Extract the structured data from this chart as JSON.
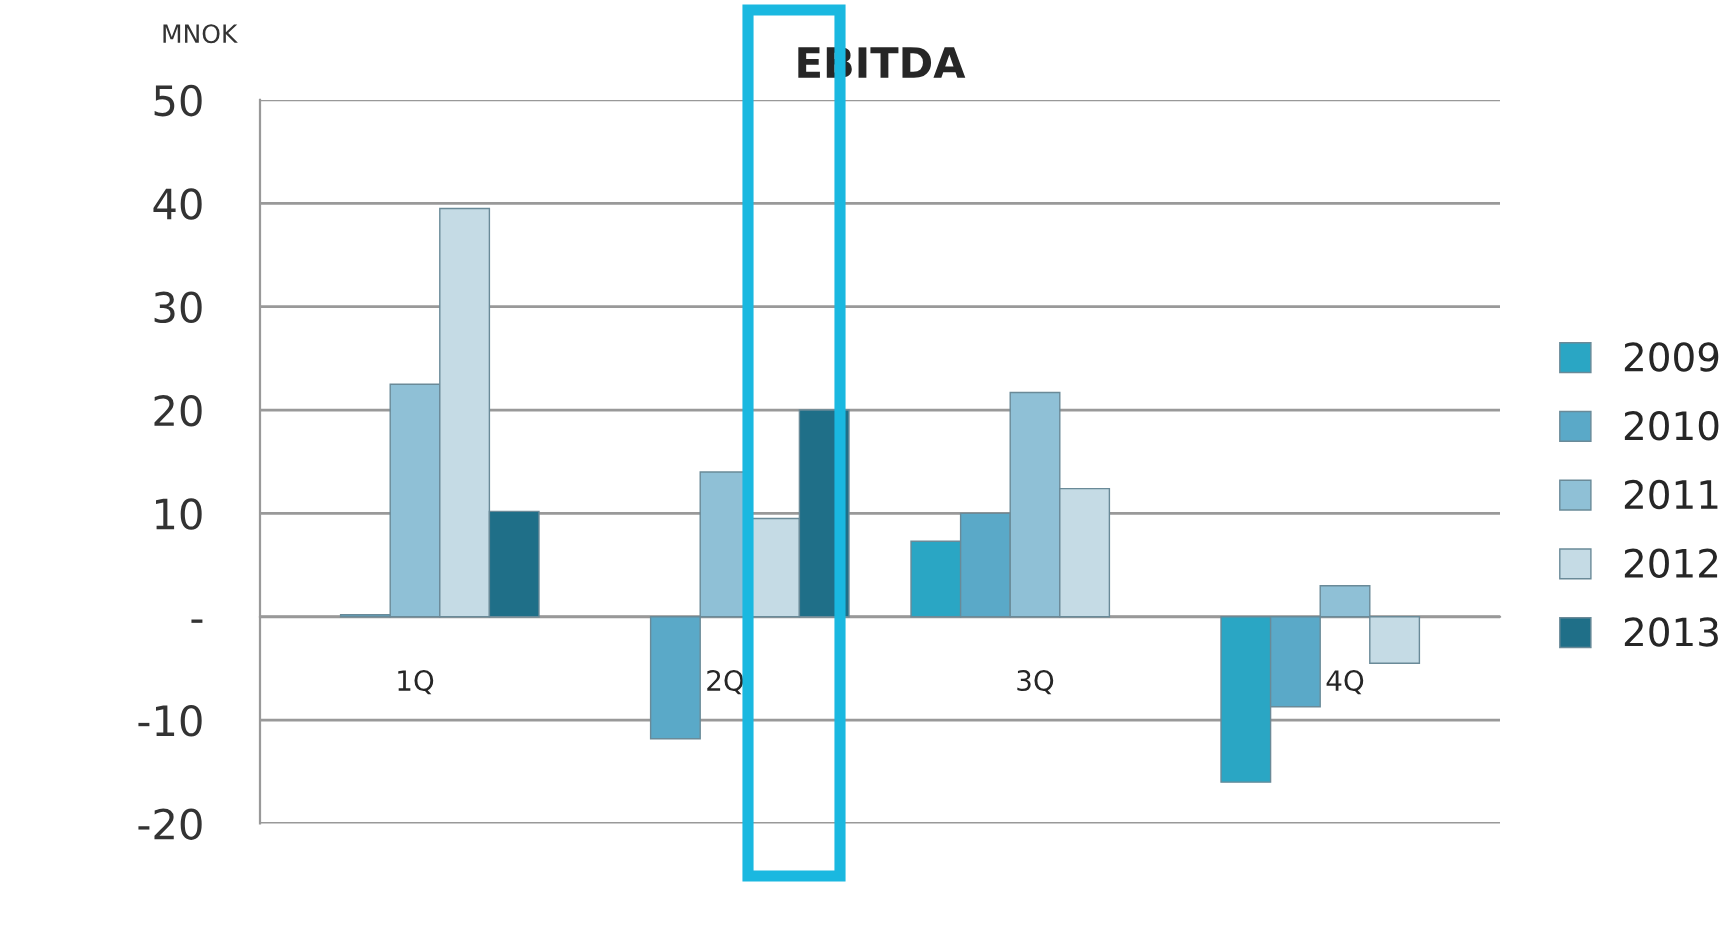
{
  "chart_data": {
    "type": "bar",
    "title": "EBITDA",
    "ylabel": "MNOK",
    "categories": [
      "1Q",
      "2Q",
      "3Q",
      "4Q"
    ],
    "series": [
      {
        "name": "2009",
        "color": "#2aa6c4",
        "values": [
          null,
          null,
          7.3,
          -16
        ]
      },
      {
        "name": "2010",
        "color": "#5aa9c8",
        "values": [
          0.2,
          -11.8,
          10,
          -8.7
        ]
      },
      {
        "name": "2011",
        "color": "#8fc0d6",
        "values": [
          22.5,
          14,
          21.7,
          3
        ]
      },
      {
        "name": "2012",
        "color": "#c5dbe5",
        "values": [
          39.5,
          9.5,
          12.4,
          -4.5
        ]
      },
      {
        "name": "2013",
        "color": "#1f6f88",
        "values": [
          10.2,
          20,
          null,
          null
        ]
      }
    ],
    "ylim": [
      -20,
      50
    ],
    "yticks": [
      -20,
      -10,
      {
        "value": 0,
        "label": "-"
      },
      10,
      20,
      30,
      40,
      50
    ],
    "grid": "y",
    "legend": "right"
  }
}
